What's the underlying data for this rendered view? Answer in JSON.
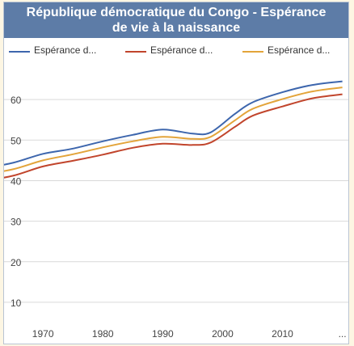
{
  "chart_data": {
    "type": "line",
    "title_lines": [
      "République démocratique du Congo - Espérance",
      "de vie à la naissance"
    ],
    "legend_position": "top",
    "x": [
      1960,
      1965,
      1970,
      1975,
      1980,
      1985,
      1990,
      1995,
      1998,
      2002,
      2005,
      2010,
      2015,
      2020
    ],
    "xticks": [
      "1970",
      "1980",
      "1990",
      "2000",
      "2010",
      "..."
    ],
    "ylim": [
      5,
      68
    ],
    "yticks": [
      10,
      20,
      30,
      40,
      50,
      60
    ],
    "grid": true,
    "series": [
      {
        "name": "Espérance d...",
        "color": "#3d66ad",
        "values": [
          43,
          44.4,
          46.6,
          47.9,
          49.7,
          51.3,
          52.6,
          51.6,
          51.9,
          56.4,
          59.3,
          61.8,
          63.6,
          64.5
        ]
      },
      {
        "name": "Espérance d...",
        "color": "#c1452c",
        "values": [
          39.9,
          41.2,
          43.5,
          44.9,
          46.4,
          48.1,
          49.1,
          48.8,
          49.4,
          53.2,
          56.0,
          58.3,
          60.3,
          61.3
        ]
      },
      {
        "name": "Espérance d...",
        "color": "#e3a43a",
        "values": [
          41.5,
          42.8,
          45.0,
          46.5,
          48.2,
          49.7,
          50.8,
          50.3,
          50.8,
          54.8,
          57.7,
          60.1,
          62.0,
          63.0
        ]
      }
    ]
  }
}
